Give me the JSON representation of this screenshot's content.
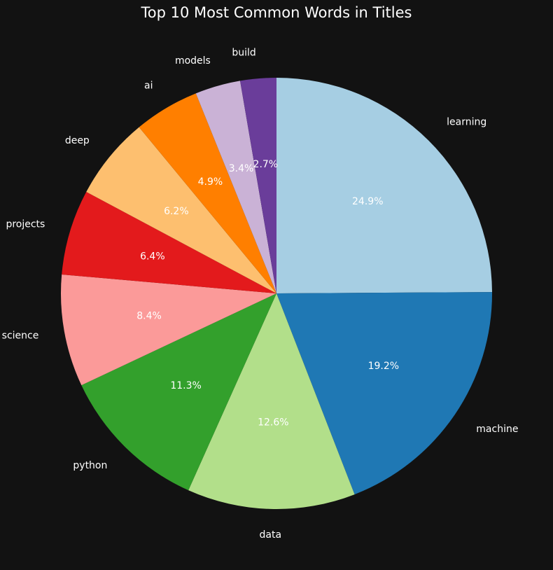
{
  "chart_data": {
    "type": "pie",
    "title": "Top 10 Most Common Words in Titles",
    "start_angle_deg": 90,
    "direction": "clockwise",
    "slices": [
      {
        "label": "learning",
        "value": 24.9,
        "pct_text": "24.9%",
        "color": "#a6cee3"
      },
      {
        "label": "machine",
        "value": 19.2,
        "pct_text": "19.2%",
        "color": "#1f78b4"
      },
      {
        "label": "data",
        "value": 12.6,
        "pct_text": "12.6%",
        "color": "#b2df8a"
      },
      {
        "label": "python",
        "value": 11.3,
        "pct_text": "11.3%",
        "color": "#33a02c"
      },
      {
        "label": "science",
        "value": 8.4,
        "pct_text": "8.4%",
        "color": "#fb9a99"
      },
      {
        "label": "projects",
        "value": 6.4,
        "pct_text": "6.4%",
        "color": "#e31a1c"
      },
      {
        "label": "deep",
        "value": 6.2,
        "pct_text": "6.2%",
        "color": "#fdbf6f"
      },
      {
        "label": "ai",
        "value": 4.9,
        "pct_text": "4.9%",
        "color": "#ff7f00"
      },
      {
        "label": "models",
        "value": 3.4,
        "pct_text": "3.4%",
        "color": "#cab2d6"
      },
      {
        "label": "build",
        "value": 2.7,
        "pct_text": "2.7%",
        "color": "#6a3d9a"
      }
    ]
  },
  "theme": {
    "background": "#121212",
    "text": "#ffffff"
  }
}
